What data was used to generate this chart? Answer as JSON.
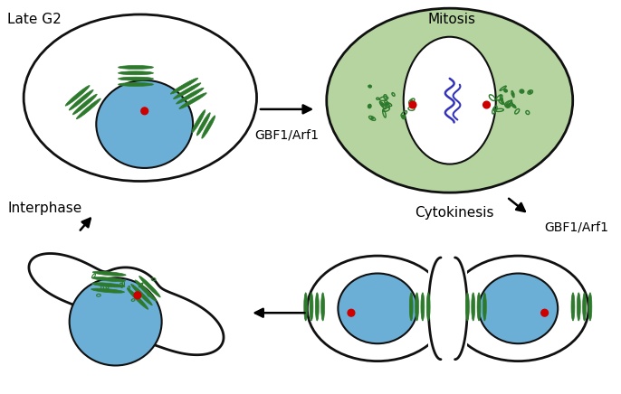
{
  "labels": {
    "late_g2": "Late G2",
    "mitosis": "Mitosis",
    "interphase": "Interphase",
    "cytokinesis": "Cytokinesis",
    "arrow1": "GBF1/Arf1",
    "arrow2": "GBF1/Arf1"
  },
  "colors": {
    "cell_outline": "#111111",
    "nucleus_blue": "#6baed6",
    "golgi_green": "#2d7a2d",
    "red_dot": "#cc0000",
    "mitosis_bg": "#b5d4a0",
    "white": "#ffffff",
    "dna_blue": "#3333bb",
    "background": "#ffffff"
  },
  "figsize": [
    6.86,
    4.36
  ],
  "dpi": 100
}
